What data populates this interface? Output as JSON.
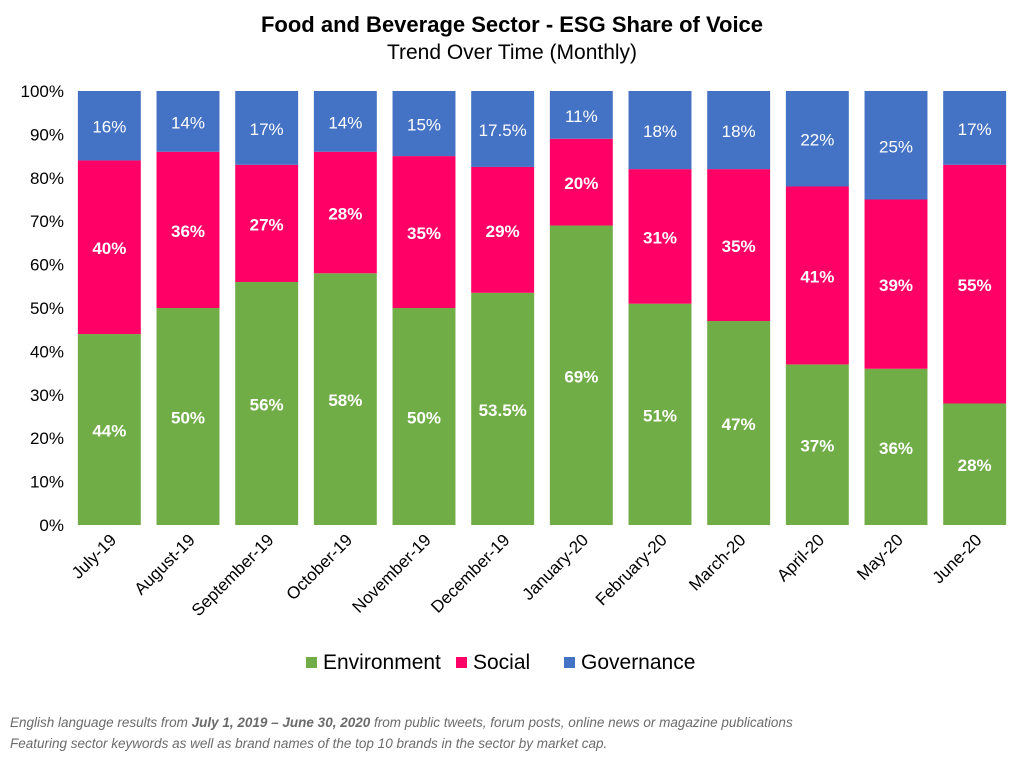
{
  "chart_data": {
    "type": "bar",
    "stacked": true,
    "title": "Food and Beverage Sector - ESG Share of Voice",
    "subtitle": "Trend Over Time (Monthly)",
    "categories": [
      "July-19",
      "August-19",
      "September-19",
      "October-19",
      "November-19",
      "December-19",
      "January-20",
      "February-20",
      "March-20",
      "April-20",
      "May-20",
      "June-20"
    ],
    "series": [
      {
        "name": "Environment",
        "color": "#70ad47",
        "values": [
          44,
          50,
          56,
          58,
          50,
          53.5,
          69,
          51,
          47,
          37,
          36,
          28
        ],
        "labels": [
          "44%",
          "50%",
          "56%",
          "58%",
          "50%",
          "53.5%",
          "69%",
          "51%",
          "47%",
          "37%",
          "36%",
          "28%"
        ]
      },
      {
        "name": "Social",
        "color": "#ff0066",
        "values": [
          40,
          36,
          27,
          28,
          35,
          29,
          20,
          31,
          35,
          41,
          39,
          55
        ],
        "labels": [
          "40%",
          "36%",
          "27%",
          "28%",
          "35%",
          "29%",
          "20%",
          "31%",
          "35%",
          "41%",
          "39%",
          "55%"
        ]
      },
      {
        "name": "Governance",
        "color": "#4472c4",
        "values": [
          16,
          14,
          17,
          14,
          15,
          17.5,
          11,
          18,
          18,
          22,
          25,
          17
        ],
        "labels": [
          "16%",
          "14%",
          "17%",
          "14%",
          "15%",
          "17.5%",
          "11%",
          "18%",
          "18%",
          "22%",
          "25%",
          "17%"
        ]
      }
    ],
    "y_ticks": [
      "0%",
      "10%",
      "20%",
      "30%",
      "40%",
      "50%",
      "60%",
      "70%",
      "80%",
      "90%",
      "100%"
    ],
    "ylim": [
      0,
      100
    ],
    "grid": false,
    "legend_position": "bottom"
  },
  "footnote": {
    "line1_pre": "English language results from ",
    "line1_bold": "July 1, 2019 – June 30, 2020",
    "line1_post": " from public tweets, forum posts, online news or magazine publications",
    "line2": "Featuring sector keywords as well as brand names of the top 10 brands in the sector by market cap."
  }
}
